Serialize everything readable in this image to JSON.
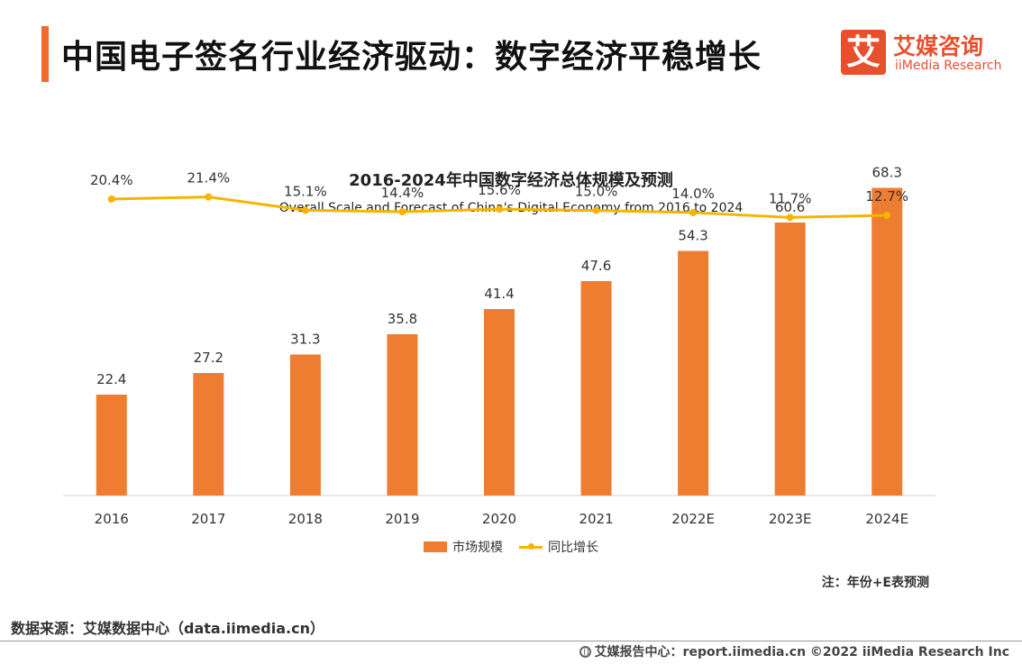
{
  "header": {
    "title": "中国电子签名行业经济驱动：数字经济平稳增长",
    "logo_mark": "艾",
    "logo_cn": "艾媒咨询",
    "logo_en": "iiMedia Research"
  },
  "chart_data": {
    "type": "bar",
    "title": "2016-2024年中国数字经济总体规模及预测",
    "subtitle": "Overall Scale and Forecast of China's Digital Economy from 2016 to 2024",
    "categories": [
      "2016",
      "2017",
      "2018",
      "2019",
      "2020",
      "2021",
      "2022E",
      "2023E",
      "2024E"
    ],
    "series": [
      {
        "name": "市场规模",
        "type": "bar",
        "color": "#ef7d31",
        "values": [
          22.4,
          27.2,
          31.3,
          35.8,
          41.4,
          47.6,
          54.3,
          60.6,
          68.3
        ],
        "labels": [
          "22.4",
          "27.2",
          "31.3",
          "35.8",
          "41.4",
          "47.6",
          "54.3",
          "60.6",
          "68.3"
        ]
      },
      {
        "name": "同比增长",
        "type": "line",
        "color": "#f5b400",
        "values": [
          20.4,
          21.4,
          15.1,
          14.4,
          15.6,
          15.0,
          14.0,
          11.7,
          12.7
        ],
        "labels": [
          "20.4%",
          "21.4%",
          "15.1%",
          "14.4%",
          "15.6%",
          "15.0%",
          "14.0%",
          "11.7%",
          "12.7%"
        ]
      }
    ],
    "ylim": [
      0,
      75
    ],
    "growth_ylim": [
      -120,
      40
    ],
    "grid": false,
    "legend_position": "bottom"
  },
  "note": "注：年份+E表预测",
  "source": "数据来源：艾媒数据中心（data.iimedia.cn）",
  "footer": {
    "icon": "globe-icon",
    "text": "艾媒报告中心：report.iimedia.cn   ©2022  iiMedia Research  Inc"
  }
}
